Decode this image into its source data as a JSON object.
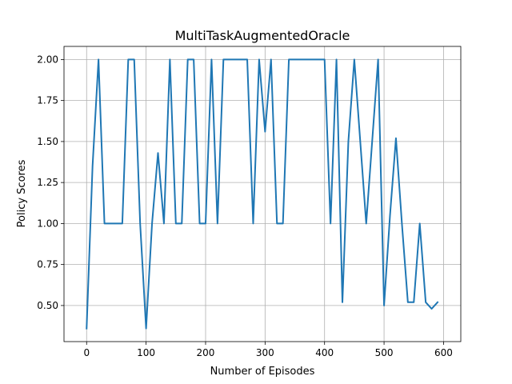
{
  "chart_data": {
    "type": "line",
    "title": "MultiTaskAugmentedOracle",
    "xlabel": "Number of Episodes",
    "ylabel": "Policy Scores",
    "xlim": [
      -38,
      629
    ],
    "ylim": [
      0.28,
      2.08
    ],
    "xticks": [
      0,
      100,
      200,
      300,
      400,
      500,
      600
    ],
    "yticks": [
      0.5,
      0.75,
      1.0,
      1.25,
      1.5,
      1.75,
      2.0
    ],
    "ytick_labels": [
      "0.50",
      "0.75",
      "1.00",
      "1.25",
      "1.50",
      "1.75",
      "2.00"
    ],
    "grid": true,
    "line_color": "#1f77b4",
    "series": [
      {
        "x": [
          0,
          10,
          20,
          30,
          40,
          50,
          60,
          70,
          80,
          90,
          100,
          110,
          120,
          130,
          140,
          150,
          160,
          170,
          180,
          190,
          200,
          210,
          220,
          230,
          240,
          250,
          260,
          270,
          280,
          290,
          300,
          310,
          320,
          330,
          340,
          350,
          360,
          370,
          380,
          390,
          400,
          410,
          420,
          430,
          440,
          450,
          460,
          470,
          480,
          490,
          500,
          510,
          520,
          530,
          540,
          550,
          560,
          570,
          580,
          590
        ],
        "values": [
          0.36,
          1.35,
          2.0,
          1.0,
          1.0,
          1.0,
          1.0,
          2.0,
          2.0,
          1.0,
          0.36,
          1.0,
          1.43,
          1.0,
          2.0,
          1.0,
          1.0,
          2.0,
          2.0,
          1.0,
          1.0,
          2.0,
          1.0,
          2.0,
          2.0,
          2.0,
          2.0,
          2.0,
          1.0,
          2.0,
          1.56,
          2.0,
          1.0,
          1.0,
          2.0,
          2.0,
          2.0,
          2.0,
          2.0,
          2.0,
          2.0,
          1.0,
          2.0,
          0.52,
          1.5,
          2.0,
          1.5,
          1.0,
          1.5,
          2.0,
          0.5,
          1.05,
          1.52,
          1.0,
          0.52,
          0.52,
          1.0,
          0.52,
          0.48,
          0.52
        ]
      }
    ]
  }
}
